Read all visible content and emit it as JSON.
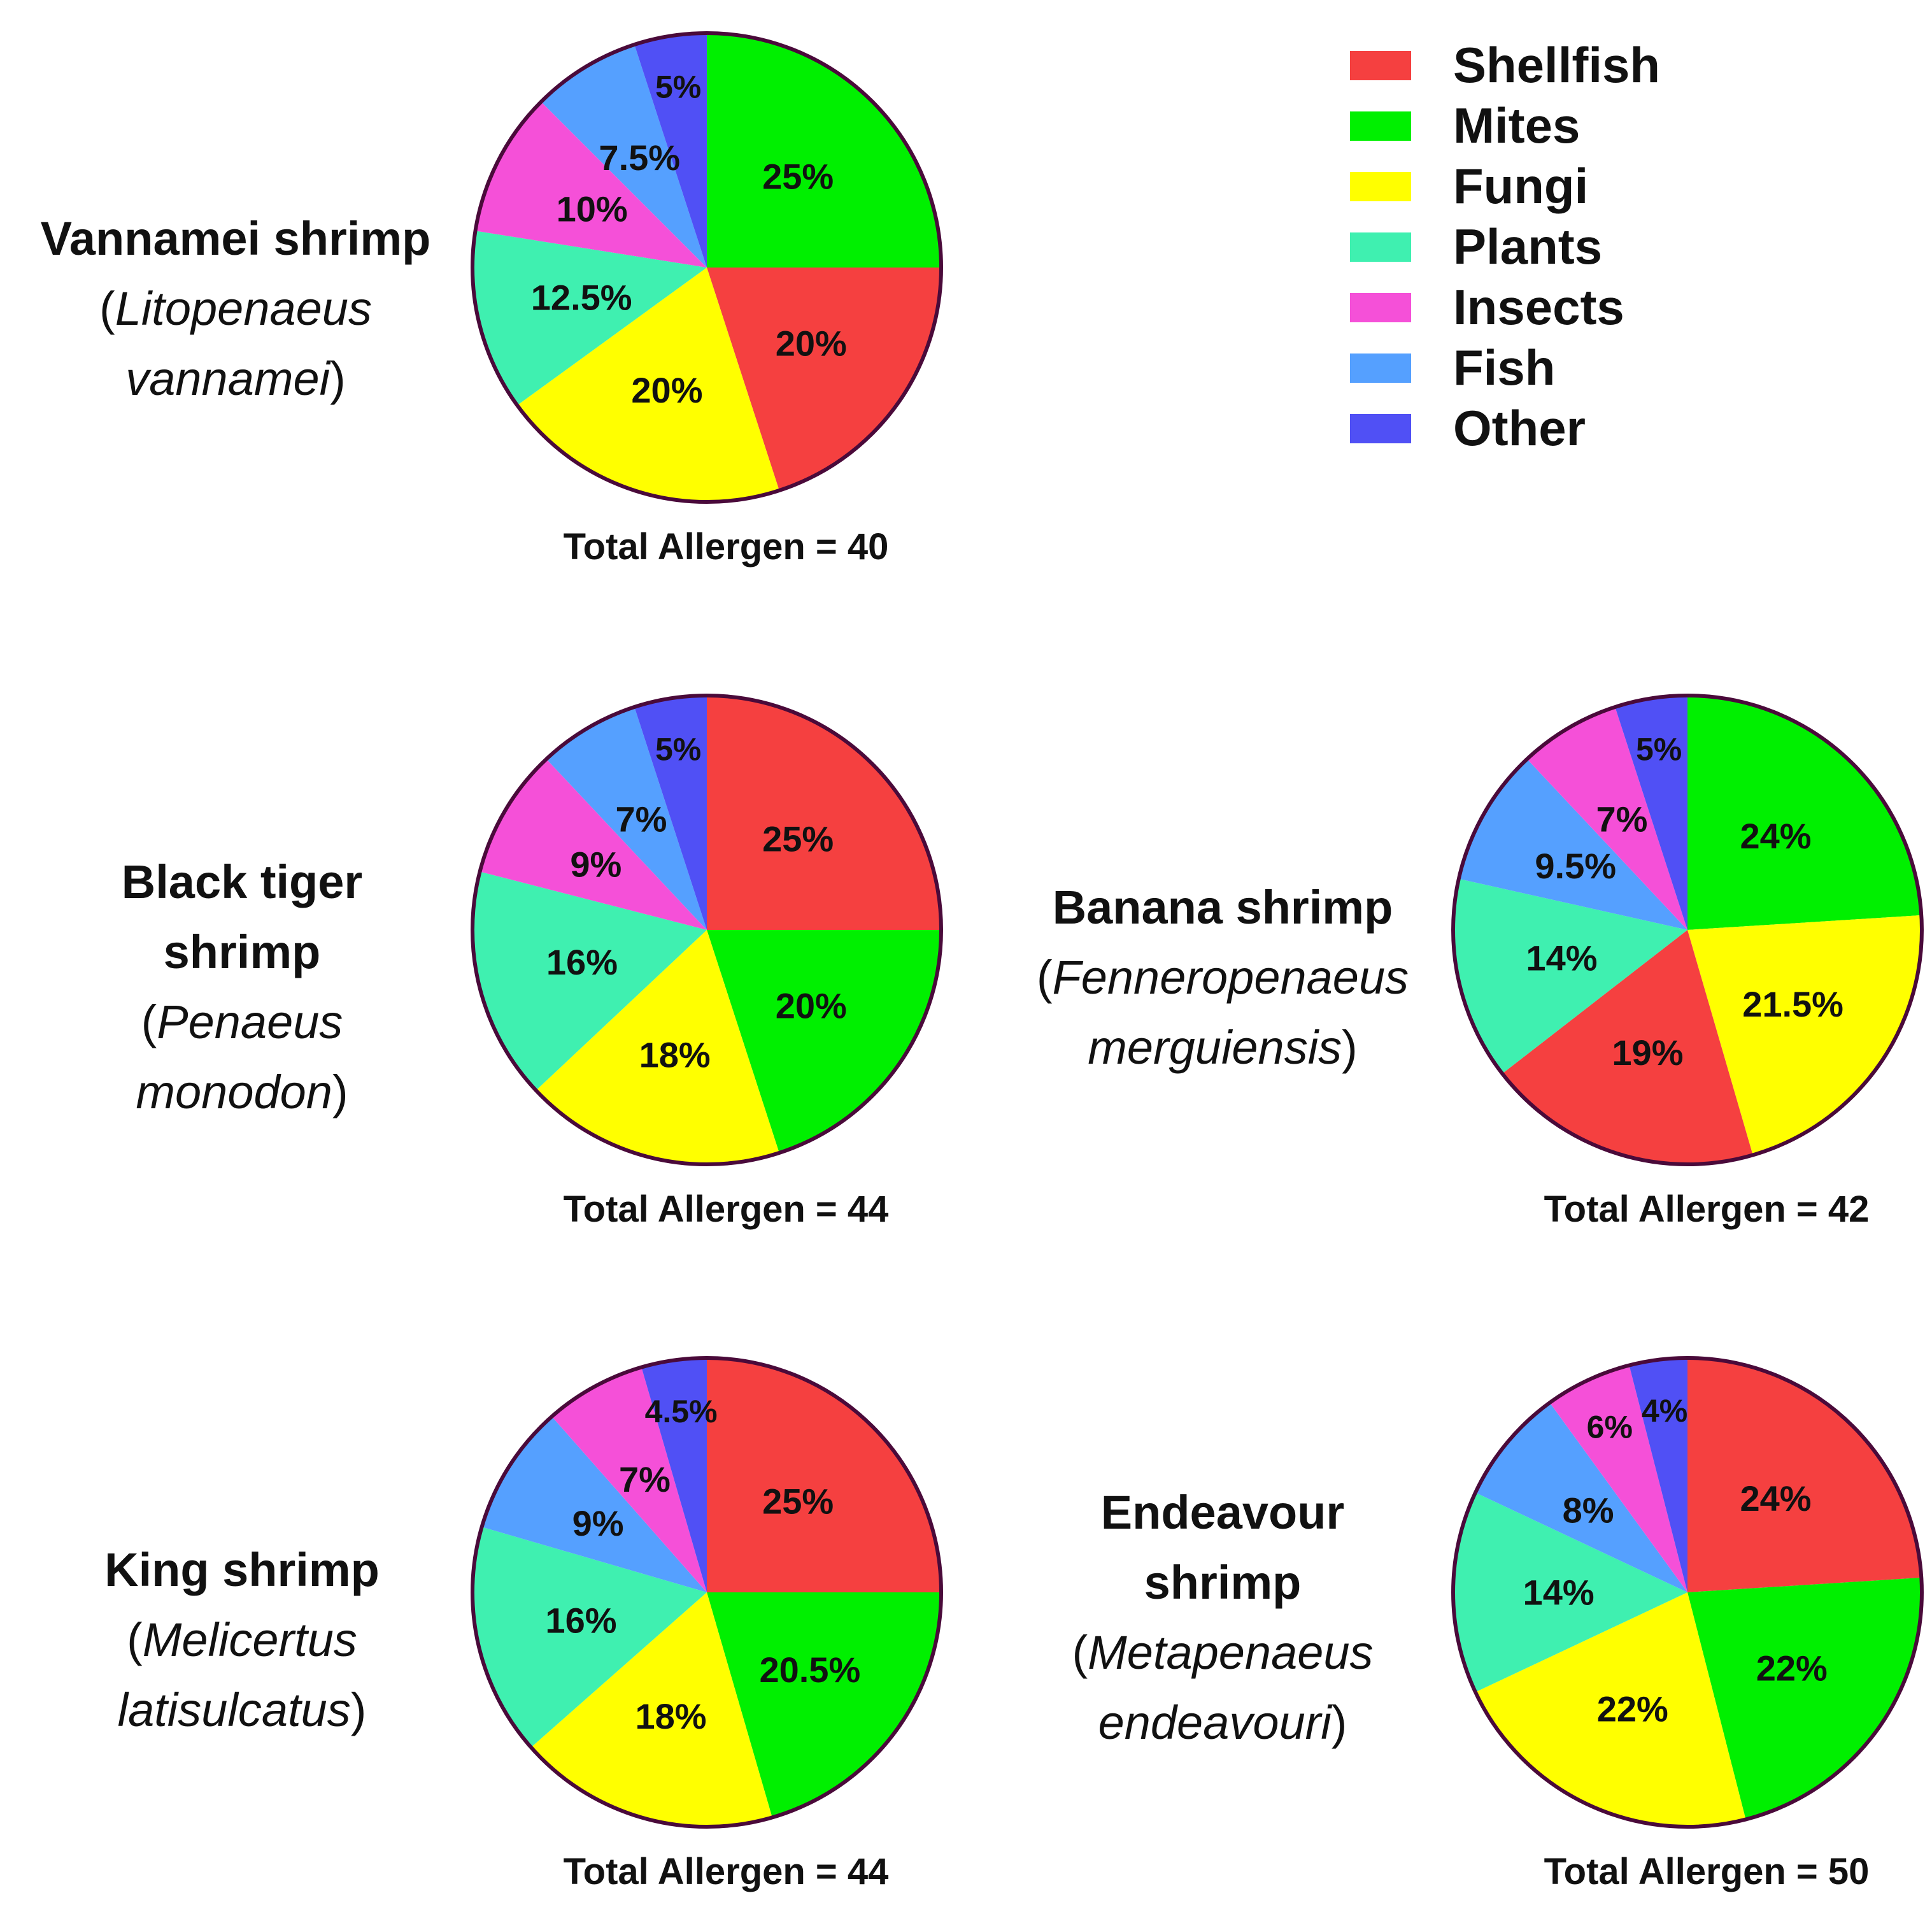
{
  "categories": [
    "Shellfish",
    "Mites",
    "Fungi",
    "Plants",
    "Insects",
    "Fish",
    "Other"
  ],
  "colors": {
    "Shellfish": "#f54040",
    "Mites": "#00f000",
    "Fungi": "#ffff00",
    "Plants": "#3ff0b0",
    "Insects": "#f550d8",
    "Fish": "#55a0ff",
    "Other": "#5050f5"
  },
  "pie_outline_color": "#4a0a3a",
  "chart_data": [
    {
      "type": "pie",
      "title": "Vannamei shrimp",
      "scientific_open": "(",
      "scientific_line1": "Litopenaeus",
      "scientific_line2": "vannamei",
      "scientific_close": ")",
      "total_label": "Total Allergen = 40",
      "slices": [
        {
          "category": "Mites",
          "value": 25,
          "label": "25%"
        },
        {
          "category": "Shellfish",
          "value": 20,
          "label": "20%"
        },
        {
          "category": "Fungi",
          "value": 20,
          "label": "20%"
        },
        {
          "category": "Plants",
          "value": 12.5,
          "label": "12.5%"
        },
        {
          "category": "Insects",
          "value": 10,
          "label": "10%"
        },
        {
          "category": "Fish",
          "value": 7.5,
          "label": "7.5%"
        },
        {
          "category": "Other",
          "value": 5,
          "label": "5%"
        }
      ]
    },
    {
      "type": "pie",
      "title": "Black tiger shrimp",
      "title_line1": "Black tiger",
      "title_line2": "shrimp",
      "scientific_open": "(",
      "scientific_line1": "Penaeus",
      "scientific_line2": "monodon",
      "scientific_close": ")",
      "total_label": "Total Allergen = 44",
      "slices": [
        {
          "category": "Shellfish",
          "value": 25,
          "label": "25%"
        },
        {
          "category": "Mites",
          "value": 20,
          "label": "20%"
        },
        {
          "category": "Fungi",
          "value": 18,
          "label": "18%"
        },
        {
          "category": "Plants",
          "value": 16,
          "label": "16%"
        },
        {
          "category": "Insects",
          "value": 9,
          "label": "9%"
        },
        {
          "category": "Fish",
          "value": 7,
          "label": "7%"
        },
        {
          "category": "Other",
          "value": 5,
          "label": "5%"
        }
      ]
    },
    {
      "type": "pie",
      "title": "Banana shrimp",
      "scientific_open": "(",
      "scientific_line1": "Fenneropenaeus",
      "scientific_line2": "merguiensis",
      "scientific_close": ")",
      "total_label": "Total Allergen = 42",
      "slices": [
        {
          "category": "Mites",
          "value": 24,
          "label": "24%"
        },
        {
          "category": "Fungi",
          "value": 21.5,
          "label": "21.5%"
        },
        {
          "category": "Shellfish",
          "value": 19,
          "label": "19%"
        },
        {
          "category": "Plants",
          "value": 14,
          "label": "14%"
        },
        {
          "category": "Fish",
          "value": 9.5,
          "label": "9.5%"
        },
        {
          "category": "Insects",
          "value": 7,
          "label": "7%"
        },
        {
          "category": "Other",
          "value": 5,
          "label": "5%"
        }
      ]
    },
    {
      "type": "pie",
      "title": "King shrimp",
      "scientific_open": "(",
      "scientific_line1": "Melicertus",
      "scientific_line2": "latisulcatus",
      "scientific_close": ")",
      "total_label": "Total Allergen = 44",
      "slices": [
        {
          "category": "Shellfish",
          "value": 25,
          "label": "25%"
        },
        {
          "category": "Mites",
          "value": 20.5,
          "label": "20.5%"
        },
        {
          "category": "Fungi",
          "value": 18,
          "label": "18%"
        },
        {
          "category": "Plants",
          "value": 16,
          "label": "16%"
        },
        {
          "category": "Fish",
          "value": 9,
          "label": "9%"
        },
        {
          "category": "Insects",
          "value": 7,
          "label": "7%"
        },
        {
          "category": "Other",
          "value": 4.5,
          "label": "4.5%"
        }
      ]
    },
    {
      "type": "pie",
      "title": "Endeavour shrimp",
      "title_line1": "Endeavour",
      "title_line2": "shrimp",
      "scientific_open": "(",
      "scientific_line1": "Metapenaeus",
      "scientific_line2": "endeavouri",
      "scientific_close": ")",
      "total_label": "Total Allergen = 50",
      "slices": [
        {
          "category": "Shellfish",
          "value": 24,
          "label": "24%"
        },
        {
          "category": "Mites",
          "value": 22,
          "label": "22%"
        },
        {
          "category": "Fungi",
          "value": 22,
          "label": "22%"
        },
        {
          "category": "Plants",
          "value": 14,
          "label": "14%"
        },
        {
          "category": "Fish",
          "value": 8,
          "label": "8%"
        },
        {
          "category": "Insects",
          "value": 6,
          "label": "6%"
        },
        {
          "category": "Other",
          "value": 4,
          "label": "4%"
        }
      ]
    }
  ]
}
